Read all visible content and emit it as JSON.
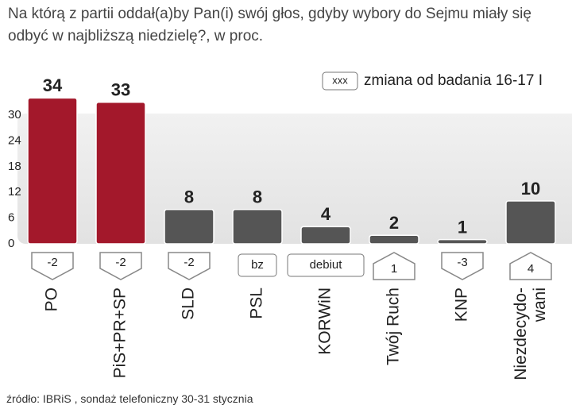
{
  "chart_data": {
    "type": "bar",
    "title": "Na którą z partii oddał(a)by Pan(i) swój głos, gdyby wybory do Sejmu miały się odbyć w najbliższą niedzielę?, w proc.",
    "legend": {
      "symbol": "xxx",
      "label": "zmiana od badania 16-17 I"
    },
    "categories": [
      "PO",
      "PiS+PR+SP",
      "SLD",
      "PSL",
      "KORWiN",
      "Twój Ruch",
      "KNP",
      "Niezdecydo-wani"
    ],
    "values": [
      34,
      33,
      8,
      8,
      4,
      2,
      1,
      10
    ],
    "colors": [
      "#a3182b",
      "#a3182b",
      "#555555",
      "#555555",
      "#555555",
      "#555555",
      "#555555",
      "#555555"
    ],
    "changes": [
      -2,
      -2,
      -2,
      "bz",
      "debiut",
      1,
      -3,
      4
    ],
    "ylim": [
      0,
      35
    ],
    "yticks": [
      0,
      6,
      12,
      18,
      24,
      30
    ],
    "source": "źródło: IBRiS , sondaż telefoniczny 30-31 stycznia"
  }
}
